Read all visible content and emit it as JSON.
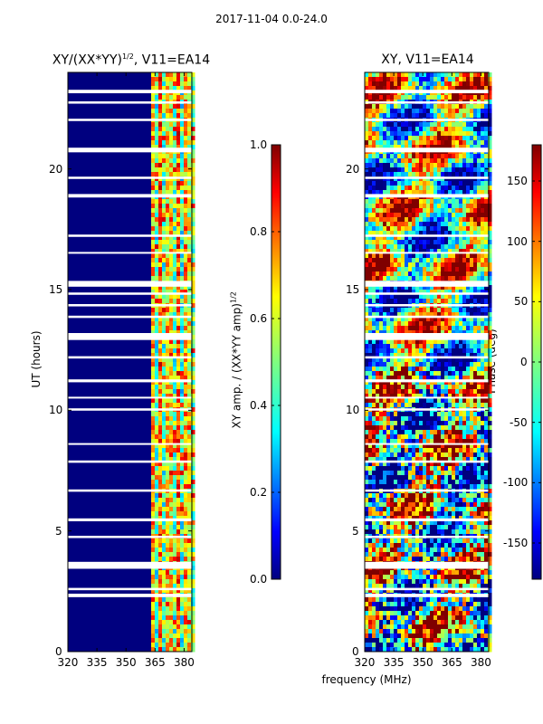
{
  "suptitle": "2017-11-04 0.0-24.0",
  "xlabel": "frequency (MHz)",
  "chart_data": [
    {
      "type": "heatmap",
      "title_main": "XY/(XX*YY)",
      "title_sup": "1/2",
      "title_tail": ", V11=EA14",
      "ylabel": "UT (hours)",
      "x_ticks": [
        "320",
        "335",
        "350",
        "365",
        "380"
      ],
      "x_tick_values": [
        320,
        335,
        350,
        365,
        380
      ],
      "xlim": [
        320,
        384
      ],
      "y_ticks": [
        "0",
        "5",
        "10",
        "15",
        "20"
      ],
      "y_tick_values": [
        0,
        5,
        10,
        15,
        20
      ],
      "ylim": [
        0,
        24
      ],
      "colorbar_label_main": "XY amp. / (XX*YY amp)",
      "colorbar_label_sup": "1/2",
      "colorbar_ticks": [
        "0.0",
        "0.2",
        "0.4",
        "0.6",
        "0.8",
        "1.0"
      ],
      "colorbar_tick_values": [
        0.0,
        0.2,
        0.4,
        0.6,
        0.8,
        1.0
      ],
      "colorbar_range": [
        0.0,
        1.0
      ]
    },
    {
      "type": "heatmap",
      "title": "XY, V11=EA14",
      "x_ticks": [
        "320",
        "335",
        "350",
        "365",
        "380"
      ],
      "x_tick_values": [
        320,
        335,
        350,
        365,
        380
      ],
      "xlim": [
        320,
        384
      ],
      "y_ticks": [
        "0",
        "5",
        "10",
        "15",
        "20"
      ],
      "y_tick_values": [
        0,
        5,
        10,
        15,
        20
      ],
      "ylim": [
        0,
        24
      ],
      "colorbar_label": "Phase (deg)",
      "colorbar_ticks": [
        "-150",
        "-100",
        "-50",
        "0",
        "50",
        "100",
        "150"
      ],
      "colorbar_tick_values": [
        -150,
        -100,
        -50,
        0,
        50,
        100,
        150
      ],
      "colorbar_range": [
        -180,
        180
      ]
    }
  ],
  "colors": {
    "jet": [
      "#00007f",
      "#0000ff",
      "#007fff",
      "#00ffff",
      "#7fff7f",
      "#ffff00",
      "#ff7f00",
      "#ff0000",
      "#7f0000"
    ]
  }
}
